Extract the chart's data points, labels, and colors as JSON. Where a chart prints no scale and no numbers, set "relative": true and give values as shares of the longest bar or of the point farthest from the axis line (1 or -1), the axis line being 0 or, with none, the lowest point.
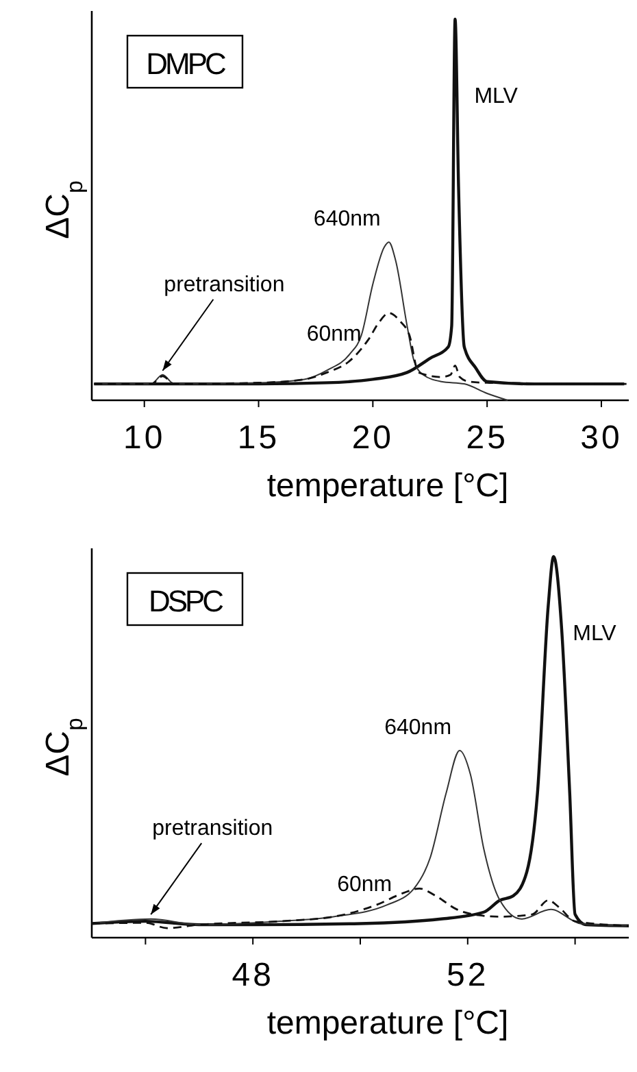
{
  "chart_data": [
    {
      "type": "line",
      "title": "DMPC",
      "xlabel": "temperature [°C]",
      "ylabel": "ΔC$_{p}$",
      "relative": true,
      "xlim": [
        7.7,
        31.2
      ],
      "xticks": [
        10,
        15,
        20,
        25,
        30
      ],
      "grid": false,
      "legend": false,
      "marker": "none",
      "annotations": [
        {
          "text": "pretransition",
          "x": 10.8,
          "y": 0.067
        }
      ],
      "series": [
        {
          "name": "MLV",
          "color": "#111111",
          "line_style": "solid",
          "x": [
            7.8,
            10,
            15,
            18,
            20,
            21.5,
            22.5,
            23.3,
            23.45,
            23.6,
            23.75,
            24.0,
            24.5,
            25,
            27,
            31
          ],
          "values": [
            0.043,
            0.043,
            0.043,
            0.046,
            0.055,
            0.073,
            0.11,
            0.14,
            0.195,
            1,
            0.561,
            0.14,
            0.085,
            0.049,
            0.043,
            0.043
          ]
        },
        {
          "name": "640nm",
          "color": "#333333",
          "line_style": "solid",
          "x": [
            7.8,
            10.3,
            10.8,
            11.3,
            15,
            17,
            18,
            19,
            19.5,
            20,
            20.5,
            20.7,
            21,
            21.5,
            21.8,
            22.2,
            23,
            24,
            25,
            25.9
          ],
          "values": [
            0.043,
            0.043,
            0.067,
            0.043,
            0.046,
            0.055,
            0.079,
            0.122,
            0.171,
            0.305,
            0.402,
            0.415,
            0.366,
            0.195,
            0.104,
            0.067,
            0.049,
            0.043,
            0.018,
            0
          ]
        },
        {
          "name": "60nm",
          "color": "#111111",
          "line_style": "dashed",
          "x": [
            7.8,
            10.3,
            10.8,
            11.3,
            15,
            17,
            18,
            19,
            19.8,
            20.3,
            20.7,
            21.2,
            21.6,
            22,
            23,
            23.4,
            23.6,
            23.8,
            24.2,
            25,
            31.1
          ],
          "values": [
            0.043,
            0.043,
            0.063,
            0.043,
            0.046,
            0.055,
            0.073,
            0.104,
            0.159,
            0.207,
            0.229,
            0.207,
            0.171,
            0.073,
            0.061,
            0.067,
            0.091,
            0.061,
            0.049,
            0.046,
            0.043
          ]
        }
      ]
    },
    {
      "type": "line",
      "title": "DSPC",
      "xlabel": "temperature [°C]",
      "ylabel": "ΔC$_{p}$",
      "relative": true,
      "xlim": [
        45,
        55
      ],
      "xticks": [
        {
          "value": 46,
          "label": null
        },
        48,
        {
          "value": 50,
          "label": null
        },
        52,
        {
          "value": 54,
          "label": null
        }
      ],
      "grid": false,
      "legend": false,
      "marker": "none",
      "annotations": [
        {
          "text": "pretransition",
          "x": 46.1,
          "y": 0.05
        }
      ],
      "series": [
        {
          "name": "MLV",
          "color": "#111111",
          "line_style": "solid",
          "x": [
            45,
            46,
            47,
            48,
            50,
            51.5,
            52.3,
            52.6,
            52.85,
            53.1,
            53.3,
            53.5,
            53.6,
            53.75,
            53.9,
            54.0,
            54.2,
            55
          ],
          "values": [
            0.037,
            0.043,
            0.034,
            0.034,
            0.037,
            0.049,
            0.067,
            0.098,
            0.11,
            0.172,
            0.38,
            0.871,
            1,
            0.81,
            0.38,
            0.061,
            0.034,
            0.031
          ]
        },
        {
          "name": "640nm",
          "color": "#333333",
          "line_style": "solid",
          "x": [
            45,
            46.1,
            47,
            48.5,
            49.5,
            50.5,
            51,
            51.3,
            51.6,
            51.85,
            52.05,
            52.3,
            52.6,
            53,
            53.55,
            54.1,
            55
          ],
          "values": [
            0.037,
            0.049,
            0.034,
            0.043,
            0.055,
            0.086,
            0.129,
            0.209,
            0.38,
            0.491,
            0.429,
            0.233,
            0.098,
            0.049,
            0.074,
            0.037,
            0.031
          ]
        },
        {
          "name": "60nm",
          "color": "#111111",
          "line_style": "dashed",
          "x": [
            45,
            46,
            46.4,
            47,
            48.5,
            49.5,
            50.3,
            50.8,
            51.1,
            51.4,
            51.8,
            52.2,
            52.6,
            53.2,
            53.5,
            53.7,
            54,
            55
          ],
          "values": [
            0.037,
            0.039,
            0.025,
            0.034,
            0.043,
            0.055,
            0.086,
            0.117,
            0.129,
            0.11,
            0.074,
            0.059,
            0.055,
            0.061,
            0.098,
            0.08,
            0.043,
            0.031
          ]
        }
      ]
    }
  ]
}
